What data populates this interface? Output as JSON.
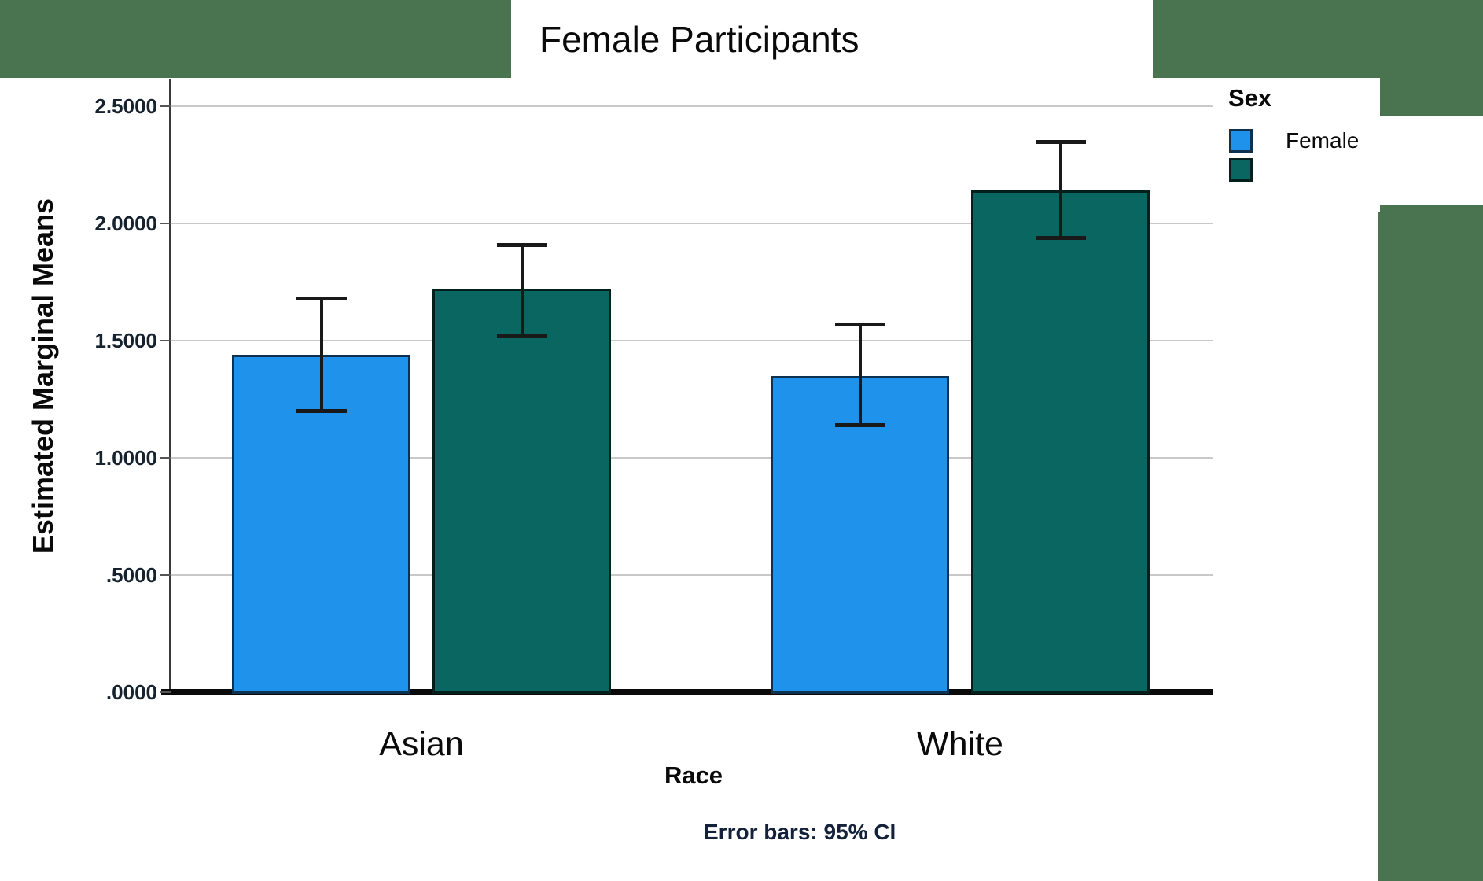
{
  "title": "Female Participants",
  "legend": {
    "title": "Sex",
    "entries": [
      {
        "label": "Female",
        "color": "#1F93EB",
        "border_color": "#0E3150"
      },
      {
        "label": "",
        "color": "#0A6661",
        "border_color": "#03201D"
      }
    ]
  },
  "chart_data": {
    "type": "bar",
    "title": "Female Participants",
    "xlabel": "Race",
    "ylabel": "Estimated Marginal Means",
    "caption": "Error bars: 95% CI",
    "categories": [
      "Asian",
      "White"
    ],
    "series": [
      {
        "name": "Female",
        "color": "#1F93EB",
        "border_color": "#0E3150",
        "values": [
          1.44,
          1.35
        ],
        "ci_low": [
          1.2,
          1.14
        ],
        "ci_high": [
          1.68,
          1.57
        ]
      },
      {
        "name": "",
        "color": "#0A6661",
        "border_color": "#03201D",
        "values": [
          1.72,
          2.14
        ],
        "ci_low": [
          1.52,
          1.94
        ],
        "ci_high": [
          1.91,
          2.35
        ]
      }
    ],
    "y_ticks": [
      "2.5000",
      "2.0000",
      "1.5000",
      "1.0000",
      ".5000",
      ".0000"
    ],
    "ylim": [
      0,
      2.5
    ],
    "error_bars": "95% CI",
    "grid": true,
    "legend_position": "top-right"
  },
  "colors": {
    "frame_green": "#4A7350",
    "bar_blue": "#1F93EB",
    "bar_teal": "#0A6661",
    "gridline": "#C9C9C9",
    "baseline": "#0A0A0A",
    "text": "#111111"
  }
}
